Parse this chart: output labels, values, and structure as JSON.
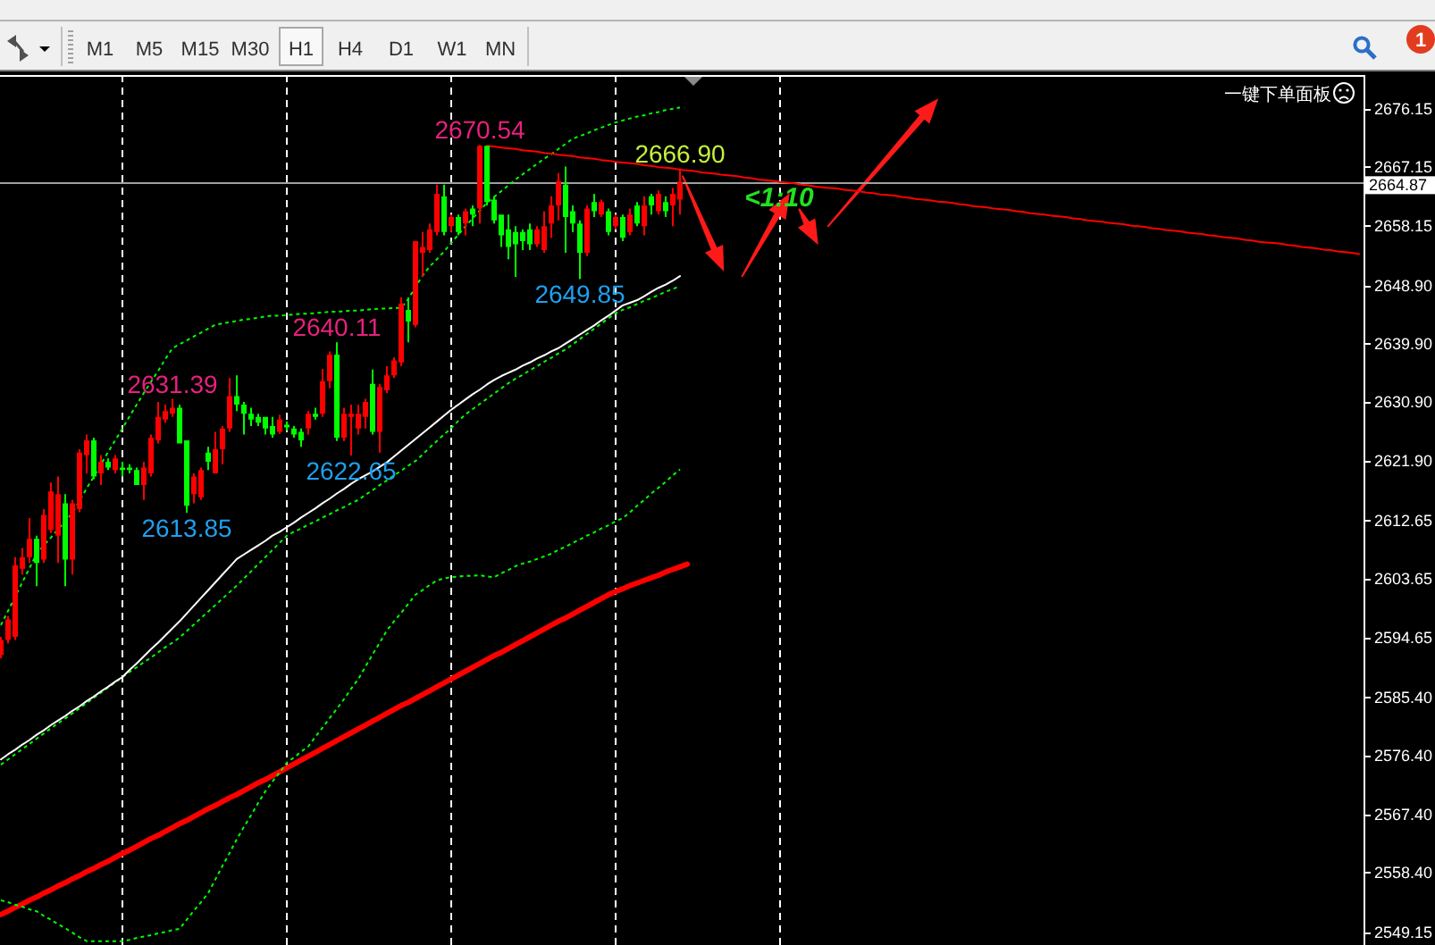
{
  "chart_data": {
    "type": "candlestick",
    "categories": [
      null,
      null,
      null,
      null,
      null,
      null,
      null,
      null,
      null,
      null,
      null,
      null,
      null,
      null,
      null,
      null,
      null,
      null,
      null,
      null,
      null,
      null,
      null,
      null,
      null,
      null,
      null,
      null,
      null,
      null,
      null,
      null,
      null,
      null,
      null,
      null,
      null,
      null,
      null,
      null,
      null,
      null,
      null,
      null,
      null,
      null,
      null,
      null,
      null,
      null,
      null,
      null,
      null,
      null,
      null,
      null,
      null,
      null,
      null,
      null,
      null,
      null,
      null,
      null,
      null,
      null,
      null,
      null,
      null,
      null,
      null,
      null,
      null,
      null,
      null,
      null,
      null,
      null,
      null,
      null,
      null,
      null,
      null,
      null,
      null,
      null,
      null,
      null,
      null,
      null,
      null,
      null,
      null,
      null,
      null,
      null,
      null,
      null,
      null,
      null,
      null,
      null,
      null,
      null,
      null,
      null,
      null,
      null,
      null,
      null,
      null,
      null,
      null,
      null,
      null,
      null,
      null,
      null,
      null,
      null,
      null,
      null,
      null,
      null,
      null,
      null,
      null,
      null,
      null,
      null,
      null,
      null,
      null,
      null,
      null,
      null,
      null,
      null,
      null,
      null,
      null,
      null,
      null,
      null,
      null,
      null,
      null,
      null,
      null,
      null,
      null,
      null,
      null,
      null,
      null,
      null,
      null,
      null,
      null,
      null,
      null,
      null,
      null,
      null,
      null,
      null,
      null,
      null,
      null,
      null,
      null,
      null,
      null,
      null,
      null,
      null,
      null,
      null,
      null,
      null,
      null,
      null,
      null,
      null,
      null,
      null,
      null,
      null,
      null,
      null,
      null
    ],
    "ohlc": [
      [
        2591.9,
        2594.7,
        2591.4,
        2594.2
      ],
      [
        2594.2,
        2597.9,
        2593.7,
        2597.4
      ],
      [
        2594.7,
        2607.0,
        2594.2,
        2605.7
      ],
      [
        2605.2,
        2608.4,
        2604.3,
        2607.0
      ],
      [
        2607.0,
        2613.0,
        2606.1,
        2609.8
      ],
      [
        2609.8,
        2610.3,
        2602.5,
        2606.1
      ],
      [
        2606.6,
        2614.4,
        2606.1,
        2613.5
      ],
      [
        2611.2,
        2618.5,
        2610.7,
        2617.1
      ],
      [
        2610.3,
        2619.4,
        2606.1,
        2616.7
      ],
      [
        2615.3,
        2616.7,
        2602.5,
        2606.6
      ],
      [
        2606.6,
        2615.8,
        2604.3,
        2615.3
      ],
      [
        2614.4,
        2623.6,
        2613.9,
        2623.1
      ],
      [
        2622.7,
        2625.9,
        2619.9,
        2625.0
      ],
      [
        2625.0,
        2625.4,
        2619.0,
        2619.4
      ],
      [
        2619.9,
        2622.7,
        2618.1,
        2621.7
      ],
      [
        2621.7,
        2622.2,
        2620.4,
        2620.8
      ],
      [
        2620.4,
        2622.7,
        2619.9,
        2622.2
      ],
      [
        2620.8,
        2621.7,
        2619.4,
        2620.4
      ],
      [
        2620.8,
        2621.3,
        2619.9,
        2620.4
      ],
      [
        2620.4,
        2620.8,
        2618.1,
        2618.1
      ],
      [
        2618.1,
        2621.7,
        2615.8,
        2620.8
      ],
      [
        2619.9,
        2625.9,
        2619.4,
        2625.4
      ],
      [
        2625.0,
        2630.9,
        2624.5,
        2628.6
      ],
      [
        2628.2,
        2630.5,
        2627.7,
        2629.5
      ],
      [
        2629.1,
        2631.39,
        2628.6,
        2630.0
      ],
      [
        2630.0,
        2630.5,
        2624.5,
        2624.5
      ],
      [
        2625.0,
        2625.0,
        2613.85,
        2614.9
      ],
      [
        2616.7,
        2619.9,
        2615.3,
        2619.4
      ],
      [
        2616.2,
        2620.8,
        2615.8,
        2620.4
      ],
      [
        2623.1,
        2624.0,
        2620.4,
        2621.7
      ],
      [
        2619.9,
        2626.3,
        2619.9,
        2623.6
      ],
      [
        2623.6,
        2627.2,
        2621.3,
        2626.8
      ],
      [
        2626.8,
        2634.6,
        2626.3,
        2631.8
      ],
      [
        2631.8,
        2635.0,
        2629.5,
        2630.5
      ],
      [
        2630.5,
        2630.9,
        2625.9,
        2629.1
      ],
      [
        2629.1,
        2630.0,
        2627.2,
        2628.2
      ],
      [
        2628.6,
        2629.1,
        2627.2,
        2627.7
      ],
      [
        2628.6,
        2628.6,
        2625.9,
        2626.8
      ],
      [
        2627.2,
        2628.6,
        2625.4,
        2625.9
      ],
      [
        2626.3,
        2628.9,
        2626.0,
        2628.2
      ],
      [
        2627.4,
        2627.9,
        2626.5,
        2627.0
      ],
      [
        2626.8,
        2627.2,
        2625.4,
        2625.9
      ],
      [
        2626.3,
        2626.8,
        2624.0,
        2625.0
      ],
      [
        2626.8,
        2629.5,
        2625.9,
        2629.1
      ],
      [
        2629.1,
        2630.0,
        2628.2,
        2628.6
      ],
      [
        2629.1,
        2636.0,
        2628.6,
        2634.1
      ],
      [
        2634.1,
        2638.7,
        2633.0,
        2638.2
      ],
      [
        2638.2,
        2640.11,
        2624.9,
        2625.4
      ],
      [
        2625.4,
        2630.0,
        2624.9,
        2629.1
      ],
      [
        2628.6,
        2630.5,
        2622.65,
        2629.1
      ],
      [
        2626.8,
        2630.5,
        2625.9,
        2629.1
      ],
      [
        2628.6,
        2631.4,
        2626.8,
        2630.9
      ],
      [
        2633.7,
        2635.9,
        2625.9,
        2626.3
      ],
      [
        2626.3,
        2633.7,
        2623.1,
        2633.2
      ],
      [
        2632.7,
        2636.4,
        2632.3,
        2635.0
      ],
      [
        2635.0,
        2637.8,
        2634.6,
        2637.3
      ],
      [
        2637.0,
        2647.0,
        2636.4,
        2646.1
      ],
      [
        2645.1,
        2647.0,
        2640.1,
        2643.3
      ],
      [
        2642.8,
        2655.7,
        2642.4,
        2655.7
      ],
      [
        2653.9,
        2657.1,
        2650.2,
        2654.8
      ],
      [
        2654.3,
        2658.4,
        2653.9,
        2657.5
      ],
      [
        2657.1,
        2664.4,
        2656.6,
        2663.0
      ],
      [
        2662.6,
        2664.4,
        2656.6,
        2657.1
      ],
      [
        2658.0,
        2659.8,
        2657.1,
        2659.4
      ],
      [
        2659.4,
        2659.8,
        2656.6,
        2657.1
      ],
      [
        2658.4,
        2660.7,
        2656.6,
        2660.3
      ],
      [
        2660.7,
        2661.2,
        2658.0,
        2659.8
      ],
      [
        2660.7,
        2670.54,
        2658.4,
        2670.4
      ],
      [
        2670.4,
        2670.4,
        2661.2,
        2661.7
      ],
      [
        2662.1,
        2662.6,
        2658.4,
        2658.9
      ],
      [
        2659.8,
        2659.8,
        2654.8,
        2656.6
      ],
      [
        2657.5,
        2659.8,
        2652.9,
        2654.8
      ],
      [
        2657.1,
        2658.0,
        2650.2,
        2655.2
      ],
      [
        2657.1,
        2657.5,
        2654.3,
        2655.7
      ],
      [
        2657.5,
        2658.4,
        2654.3,
        2655.2
      ],
      [
        2655.2,
        2658.0,
        2654.8,
        2657.5
      ],
      [
        2654.3,
        2660.3,
        2653.9,
        2658.0
      ],
      [
        2658.4,
        2662.6,
        2656.2,
        2661.2
      ],
      [
        2661.2,
        2666.2,
        2658.9,
        2664.9
      ],
      [
        2664.4,
        2667.2,
        2653.9,
        2659.4
      ],
      [
        2660.3,
        2661.2,
        2657.1,
        2658.4
      ],
      [
        2658.4,
        2658.9,
        2649.85,
        2653.9
      ],
      [
        2653.9,
        2661.2,
        2653.4,
        2660.7
      ],
      [
        2661.7,
        2663.0,
        2659.4,
        2660.3
      ],
      [
        2659.8,
        2662.1,
        2659.4,
        2661.7
      ],
      [
        2660.3,
        2660.7,
        2656.6,
        2657.1
      ],
      [
        2658.0,
        2659.8,
        2657.5,
        2659.4
      ],
      [
        2659.4,
        2659.8,
        2655.7,
        2656.2
      ],
      [
        2657.1,
        2660.7,
        2656.6,
        2659.8
      ],
      [
        2661.2,
        2661.7,
        2658.0,
        2658.4
      ],
      [
        2658.0,
        2662.6,
        2656.6,
        2661.2
      ],
      [
        2662.6,
        2663.0,
        2659.8,
        2661.2
      ],
      [
        2660.3,
        2663.5,
        2659.8,
        2663.0
      ],
      [
        2661.7,
        2662.6,
        2659.4,
        2660.3
      ],
      [
        2661.2,
        2663.9,
        2658.0,
        2663.0
      ],
      [
        2662.1,
        2666.9,
        2659.8,
        2664.87
      ],
      null,
      null,
      null,
      null,
      null,
      null,
      null,
      null,
      null,
      null,
      null,
      null,
      null,
      null,
      null,
      null,
      null,
      null,
      null,
      null,
      null,
      null,
      null,
      null,
      null,
      null,
      null,
      null,
      null,
      null,
      null,
      null,
      null,
      null,
      null,
      null,
      null,
      null,
      null,
      null,
      null,
      null,
      null,
      null,
      null,
      null,
      null,
      null,
      null,
      null,
      null,
      null,
      null,
      null,
      null,
      null,
      null,
      null,
      null,
      null,
      null,
      null,
      null,
      null,
      null,
      null,
      null,
      null,
      null,
      null,
      null,
      null,
      null,
      null,
      null,
      null,
      null,
      null,
      null,
      null,
      null,
      null,
      null,
      null,
      null,
      null,
      null,
      null,
      null,
      null,
      null,
      null,
      null,
      null,
      null
    ],
    "colors": [
      "#ff0000",
      "#ff0000",
      "#ff0000",
      "#ff0000",
      "#ff0000",
      "#00ff00",
      "#ff0000",
      "#ff0000",
      "#ff0000",
      "#00ff00",
      "#ff0000",
      "#ff0000",
      "#ff0000",
      "#00ff00",
      "#ff0000",
      "#00ff00",
      "#ff0000",
      "#00ff00",
      "#00ff00",
      "#00ff00",
      "#ff0000",
      "#ff0000",
      "#ff0000",
      "#ff0000",
      "#ff0000",
      "#00ff00",
      "#00ff00",
      "#ff0000",
      "#ff0000",
      "#00ff00",
      "#ff0000",
      "#ff0000",
      "#ff0000",
      "#00ff00",
      "#00ff00",
      "#00ff00",
      "#00ff00",
      "#00ff00",
      "#00ff00",
      "#ff0000",
      "#00ff00",
      "#00ff00",
      "#00ff00",
      "#ff0000",
      "#00ff00",
      "#ff0000",
      "#ff0000",
      "#00ff00",
      "#ff0000",
      "#ff0000",
      "#ff0000",
      "#ff0000",
      "#00ff00",
      "#ff0000",
      "#ff0000",
      "#ff0000",
      "#ff0000",
      "#00ff00",
      "#ff0000",
      "#ff0000",
      "#ff0000",
      "#ff0000",
      "#00ff00",
      "#ff0000",
      "#00ff00",
      "#ff0000",
      "#00ff00",
      "#ff0000",
      "#00ff00",
      "#00ff00",
      "#00ff00",
      "#00ff00",
      "#00ff00",
      "#00ff00",
      "#00ff00",
      "#ff0000",
      "#ff0000",
      "#ff0000",
      "#ff0000",
      "#00ff00",
      "#00ff00",
      "#00ff00",
      "#ff0000",
      "#00ff00",
      "#ff0000",
      "#00ff00",
      "#ff0000",
      "#00ff00",
      "#ff0000",
      "#00ff00",
      "#ff0000",
      "#00ff00",
      "#ff0000",
      "#00ff00",
      "#ff0000",
      "#ff0000",
      null,
      null,
      null,
      null,
      null,
      null,
      null,
      null,
      null,
      null,
      null,
      null,
      null,
      null,
      null,
      null,
      null,
      null,
      null,
      null,
      null,
      null,
      null,
      null,
      null,
      null,
      null,
      null,
      null,
      null,
      null,
      null,
      null,
      null,
      null,
      null,
      null,
      null,
      null,
      null,
      null,
      null,
      null,
      null,
      null,
      null,
      null,
      null,
      null,
      null,
      null,
      null,
      null,
      null,
      null,
      null,
      null,
      null,
      null,
      null,
      null,
      null,
      null,
      null,
      null,
      null,
      null,
      null,
      null,
      null,
      null,
      null,
      null,
      null,
      null,
      null,
      null,
      null,
      null,
      null,
      null,
      null,
      null,
      null,
      null,
      null,
      null,
      null,
      null,
      null,
      null,
      null,
      null,
      null,
      null
    ],
    "series": [
      {
        "type": "line",
        "color": "#ff0000",
        "line_style": "solid",
        "values": [
          2551.9,
          2552.4,
          2553.0,
          2553.5,
          2554.1,
          2554.6,
          2555.2,
          2555.7,
          2556.3,
          2556.8,
          2557.4,
          2557.9,
          2558.5,
          2559.0,
          2559.6,
          2560.1,
          2560.7,
          2561.3,
          2561.8,
          2562.4,
          2563.0,
          2563.6,
          2564.1,
          2564.7,
          2565.3,
          2565.9,
          2566.4,
          2567.0,
          2567.6,
          2568.2,
          2568.7,
          2569.3,
          2569.9,
          2570.4,
          2571.0,
          2571.6,
          2572.2,
          2572.7,
          2573.3,
          2573.9,
          2574.5,
          2575.1,
          2575.7,
          2576.3,
          2576.9,
          2577.5,
          2578.1,
          2578.7,
          2579.3,
          2579.9,
          2580.5,
          2581.1,
          2581.7,
          2582.3,
          2582.9,
          2583.5,
          2584.1,
          2584.6,
          2585.2,
          2585.8,
          2586.4,
          2587.0,
          2587.6,
          2588.2,
          2588.8,
          2589.4,
          2590.0,
          2590.6,
          2591.2,
          2591.8,
          2592.3,
          2592.9,
          2593.5,
          2594.1,
          2594.7,
          2595.3,
          2595.9,
          2596.5,
          2597.1,
          2597.6,
          2598.2,
          2598.8,
          2599.4,
          2600.0,
          2600.6,
          2601.2,
          2601.7,
          2602.1,
          2602.6,
          2603.0,
          2603.4,
          2603.8,
          2604.2,
          2604.7,
          2605.1,
          2605.5,
          2605.9,
          null,
          null,
          null,
          null,
          null,
          null,
          null,
          null,
          null,
          null,
          null,
          null,
          null,
          null,
          null,
          null,
          null,
          null,
          null,
          null,
          null,
          null,
          null,
          null,
          null,
          null,
          null,
          null,
          null,
          null,
          null,
          null,
          null,
          null,
          null,
          null,
          null,
          null,
          null,
          null,
          null,
          null,
          null,
          null,
          null,
          null,
          null,
          null,
          null,
          null,
          null,
          null,
          null,
          null,
          null,
          null,
          null,
          null,
          null,
          null,
          null,
          null,
          null,
          null,
          null,
          null,
          null,
          null,
          null,
          null,
          null,
          null,
          null,
          null,
          null,
          null,
          null,
          null,
          null,
          null,
          null,
          null,
          null,
          null,
          null,
          null,
          null,
          null,
          null,
          null,
          null,
          null,
          null,
          null
        ]
      },
      {
        "type": "line",
        "color": "#00ff00",
        "line_style": "dashed",
        "values": [
          2554.1,
          2553.8,
          2553.4,
          2553.1,
          2552.7,
          2552.4,
          2551.7,
          2551.1,
          2550.4,
          2549.8,
          2549.1,
          2548.4,
          2547.8,
          2547.8,
          2547.8,
          2547.8,
          2547.8,
          2547.8,
          2548.0,
          2548.3,
          2548.5,
          2548.7,
          2549.0,
          2549.2,
          2549.5,
          2549.7,
          2551.1,
          2552.5,
          2553.8,
          2555.2,
          2557.3,
          2559.4,
          2561.4,
          2563.5,
          2565.4,
          2567.2,
          2569.1,
          2570.9,
          2572.4,
          2573.8,
          2575.3,
          2576.1,
          2577.0,
          2577.8,
          2579.3,
          2580.7,
          2582.2,
          2583.6,
          2585.1,
          2586.7,
          2588.2,
          2590.1,
          2592.0,
          2593.8,
          2595.7,
          2597.1,
          2598.4,
          2599.8,
          2601.2,
          2601.9,
          2602.7,
          2603.4,
          2603.7,
          2603.9,
          2604.0,
          2604.1,
          2604.1,
          2604.2,
          2604.0,
          2603.9,
          2604.5,
          2605.0,
          2605.6,
          2606.0,
          2606.3,
          2606.7,
          2607.1,
          2607.5,
          2608.1,
          2608.6,
          2609.2,
          2609.7,
          2610.3,
          2610.8,
          2611.4,
          2611.9,
          2612.5,
          2613.0,
          2613.9,
          2614.9,
          2615.8,
          2616.8,
          2617.7,
          2618.6,
          2619.6,
          2620.5,
          null,
          null,
          null,
          null,
          null,
          null,
          null,
          null,
          null,
          null,
          null,
          null,
          null,
          null,
          null,
          null,
          null,
          null,
          null,
          null,
          null,
          null,
          null,
          null,
          null,
          null,
          null,
          null,
          null,
          null,
          null,
          null,
          null,
          null,
          null,
          null,
          null,
          null,
          null,
          null,
          null,
          null,
          null,
          null,
          null,
          null,
          null,
          null,
          null,
          null,
          null,
          null,
          null,
          null,
          null,
          null,
          null,
          null,
          null,
          null,
          null,
          null,
          null,
          null,
          null,
          null,
          null,
          null,
          null,
          null,
          null,
          null,
          null,
          null,
          null,
          null,
          null,
          null,
          null,
          null,
          null,
          null,
          null,
          null,
          null,
          null,
          null,
          null,
          null,
          null,
          null,
          null,
          null,
          null,
          null
        ]
      },
      {
        "type": "line",
        "color": "#00ff00",
        "line_style": "dashed",
        "values": [
          2596.5,
          2598.7,
          2600.9,
          2603.1,
          2605.3,
          2607.5,
          2608.8,
          2610.0,
          2611.3,
          2612.5,
          2613.8,
          2615.7,
          2617.6,
          2619.4,
          2621.3,
          2623.2,
          2625.0,
          2626.8,
          2628.7,
          2630.5,
          2632.3,
          2634.0,
          2635.7,
          2637.5,
          2639.2,
          2639.8,
          2640.4,
          2641.0,
          2641.6,
          2642.2,
          2642.8,
          2643.0,
          2643.2,
          2643.4,
          2643.6,
          2643.7,
          2643.9,
          2644.1,
          2644.2,
          2644.2,
          2644.3,
          2644.4,
          2644.5,
          2644.5,
          2644.6,
          2644.7,
          2644.8,
          2644.8,
          2644.9,
          2645.0,
          2645.0,
          2645.1,
          2645.2,
          2645.3,
          2645.3,
          2645.4,
          2645.4,
          2646.8,
          2648.6,
          2650.4,
          2651.8,
          2652.9,
          2654.1,
          2655.4,
          2656.7,
          2658.0,
          2659.2,
          2660.4,
          2661.6,
          2662.5,
          2663.4,
          2664.3,
          2665.2,
          2666.0,
          2666.8,
          2667.6,
          2668.4,
          2669.1,
          2669.9,
          2670.7,
          2671.5,
          2671.9,
          2672.3,
          2672.8,
          2673.2,
          2673.6,
          2674.0,
          2674.3,
          2674.6,
          2674.9,
          2675.1,
          2675.4,
          2675.6,
          2675.9,
          2676.1,
          2676.3,
          null,
          null,
          null,
          null,
          null,
          null,
          null,
          null,
          null,
          null,
          null,
          null,
          null,
          null,
          null,
          null,
          null,
          null,
          null,
          null,
          null,
          null,
          null,
          null,
          null,
          null,
          null,
          null,
          null,
          null,
          null,
          null,
          null,
          null,
          null,
          null,
          null,
          null,
          null,
          null,
          null,
          null,
          null,
          null,
          null,
          null,
          null,
          null,
          null,
          null,
          null,
          null,
          null,
          null,
          null,
          null,
          null,
          null,
          null,
          null,
          null,
          null,
          null,
          null,
          null,
          null,
          null,
          null,
          null,
          null,
          null,
          null,
          null,
          null,
          null,
          null,
          null,
          null,
          null,
          null,
          null,
          null,
          null,
          null,
          null,
          null,
          null,
          null,
          null,
          null,
          null,
          null,
          null,
          null,
          null
        ]
      },
      {
        "type": "line",
        "color": "#00ff00",
        "line_style": "dashed",
        "values": [
          2575.0,
          2575.8,
          2576.6,
          2577.4,
          2578.2,
          2579.0,
          2579.8,
          2580.6,
          2581.4,
          2582.1,
          2582.9,
          2583.7,
          2584.5,
          2585.3,
          2586.1,
          2586.9,
          2587.7,
          2588.5,
          2589.3,
          2590.0,
          2590.8,
          2591.5,
          2592.3,
          2593.1,
          2593.8,
          2594.6,
          2595.6,
          2596.6,
          2597.6,
          2598.6,
          2599.6,
          2600.6,
          2601.6,
          2602.6,
          2603.7,
          2604.8,
          2605.9,
          2607.0,
          2608.1,
          2609.2,
          2610.3,
          2610.9,
          2611.4,
          2612.0,
          2612.5,
          2613.1,
          2613.6,
          2614.2,
          2614.7,
          2615.3,
          2615.8,
          2616.6,
          2617.3,
          2618.1,
          2618.8,
          2619.6,
          2620.3,
          2621.1,
          2621.8,
          2622.8,
          2623.9,
          2624.9,
          2625.9,
          2626.9,
          2628.0,
          2629.0,
          2629.8,
          2630.6,
          2631.4,
          2632.2,
          2633.0,
          2633.8,
          2634.5,
          2635.1,
          2635.8,
          2636.4,
          2637.1,
          2637.7,
          2638.4,
          2639.0,
          2639.8,
          2640.6,
          2641.4,
          2642.2,
          2643.0,
          2643.8,
          2644.6,
          2645.1,
          2645.5,
          2646.0,
          2646.5,
          2646.9,
          2647.4,
          2647.9,
          2648.3,
          2648.8,
          null,
          null,
          null,
          null,
          null,
          null,
          null,
          null,
          null,
          null,
          null,
          null,
          null,
          null,
          null,
          null,
          null,
          null,
          null,
          null,
          null,
          null,
          null,
          null,
          null,
          null,
          null,
          null,
          null,
          null,
          null,
          null,
          null,
          null,
          null,
          null,
          null,
          null,
          null,
          null,
          null,
          null,
          null,
          null,
          null,
          null,
          null,
          null,
          null,
          null,
          null,
          null,
          null,
          null,
          null,
          null,
          null,
          null,
          null,
          null,
          null,
          null,
          null,
          null,
          null,
          null,
          null,
          null,
          null,
          null,
          null,
          null,
          null,
          null,
          null,
          null,
          null,
          null,
          null,
          null,
          null,
          null,
          null,
          null,
          null,
          null,
          null,
          null,
          null,
          null,
          null,
          null,
          null,
          null,
          null
        ]
      },
      {
        "type": "line",
        "color": "#ffffff",
        "line_style": "solid",
        "values": [
          2575.8,
          2576.6,
          2577.3,
          2578.1,
          2578.8,
          2579.6,
          2580.3,
          2581.1,
          2581.8,
          2582.5,
          2583.3,
          2584.0,
          2584.8,
          2585.5,
          2586.3,
          2587.0,
          2587.8,
          2588.5,
          2589.6,
          2590.6,
          2591.7,
          2592.8,
          2593.8,
          2594.9,
          2596.0,
          2597.1,
          2598.3,
          2599.5,
          2600.7,
          2601.9,
          2603.1,
          2604.3,
          2605.5,
          2606.7,
          2607.4,
          2608.1,
          2608.8,
          2609.5,
          2610.3,
          2610.9,
          2611.6,
          2612.3,
          2613.1,
          2613.8,
          2614.5,
          2615.3,
          2616.0,
          2616.8,
          2617.5,
          2618.3,
          2619.0,
          2619.6,
          2620.2,
          2620.9,
          2621.6,
          2622.5,
          2623.4,
          2624.3,
          2625.2,
          2626.1,
          2627.0,
          2627.9,
          2628.8,
          2629.7,
          2630.5,
          2631.3,
          2632.1,
          2632.8,
          2633.6,
          2634.3,
          2634.9,
          2635.4,
          2635.9,
          2636.5,
          2637.0,
          2637.6,
          2638.1,
          2638.7,
          2639.2,
          2639.9,
          2640.6,
          2641.3,
          2642.0,
          2642.7,
          2643.5,
          2644.2,
          2645.0,
          2645.8,
          2646.2,
          2646.6,
          2647.2,
          2647.9,
          2648.5,
          2649.0,
          2649.6,
          2650.3,
          null,
          null,
          null,
          null,
          null,
          null,
          null,
          null,
          null,
          null,
          null,
          null,
          null,
          null,
          null,
          null,
          null,
          null,
          null,
          null,
          null,
          null,
          null,
          null,
          null,
          null,
          null,
          null,
          null,
          null,
          null,
          null,
          null,
          null,
          null,
          null,
          null,
          null,
          null,
          null,
          null,
          null,
          null,
          null,
          null,
          null,
          null,
          null,
          null,
          null,
          null,
          null,
          null,
          null,
          null,
          null,
          null,
          null,
          null,
          null,
          null,
          null,
          null,
          null,
          null,
          null,
          null,
          null,
          null,
          null,
          null,
          null,
          null,
          null,
          null,
          null,
          null,
          null,
          null,
          null,
          null,
          null,
          null,
          null,
          null,
          null,
          null,
          null,
          null,
          null,
          null,
          null,
          null,
          null,
          null
        ]
      },
      {
        "type": "line",
        "color": "#ff0000",
        "line_style": "solid",
        "values": [
          null,
          null,
          null,
          null,
          null,
          null,
          null,
          null,
          null,
          null,
          null,
          null,
          null,
          null,
          null,
          null,
          null,
          null,
          null,
          null,
          null,
          null,
          null,
          null,
          null,
          null,
          null,
          null,
          null,
          null,
          null,
          null,
          null,
          null,
          null,
          null,
          null,
          null,
          null,
          null,
          null,
          null,
          null,
          null,
          null,
          null,
          null,
          null,
          null,
          null,
          null,
          null,
          null,
          null,
          null,
          null,
          null,
          null,
          null,
          null,
          null,
          null,
          null,
          null,
          null,
          null,
          null,
          null,
          2670.4,
          2670.3,
          2670.1,
          2670.0,
          2669.9,
          2669.7,
          2669.6,
          2669.5,
          2669.3,
          2669.2,
          2669.0,
          2668.9,
          2668.8,
          2668.6,
          2668.5,
          2668.4,
          2668.2,
          2668.1,
          2667.9,
          2667.8,
          2667.7,
          2667.6,
          2667.4,
          2667.3,
          2667.1,
          2667.0,
          2666.9,
          2666.7,
          2666.6,
          2666.5,
          2666.3,
          2666.2,
          2666.1,
          2665.9,
          2665.8,
          2665.7,
          2665.5,
          2665.4,
          2665.2,
          2665.1,
          2665.0,
          2664.8,
          2664.7,
          2664.6,
          2664.4,
          2664.3,
          2664.1,
          2664.0,
          2663.9,
          2663.8,
          2663.6,
          2663.5,
          2663.4,
          2663.2,
          2663.1,
          2662.9,
          2662.8,
          2662.7,
          2662.5,
          2662.4,
          2662.2,
          2662.1,
          2662.0,
          2661.8,
          2661.7,
          2661.6,
          2661.4,
          2661.3,
          2661.1,
          2661.0,
          2660.9,
          2660.7,
          2660.6,
          2660.5,
          2660.3,
          2660.2,
          2660.0,
          2659.9,
          2659.8,
          2659.6,
          2659.5,
          2659.4,
          2659.2,
          2659.1,
          2658.9,
          2658.8,
          2658.7,
          2658.5,
          2658.4,
          2658.3,
          2658.1,
          2658.0,
          2657.9,
          2657.7,
          2657.6,
          2657.4,
          2657.3,
          2657.2,
          2657.0,
          2656.9,
          2656.8,
          2656.6,
          2656.5,
          2656.3,
          2656.2,
          2656.1,
          2655.9,
          2655.8,
          2655.6,
          2655.5,
          2655.4,
          2655.3,
          2655.1,
          2655.0,
          2654.8,
          2654.7,
          2654.6,
          2654.4,
          2654.3,
          2654.1,
          2654.0,
          2653.9,
          2653.7
        ]
      }
    ],
    "ylim": [
      2547.2,
      2681.3
    ],
    "yticks": [
      2676.15,
      2667.15,
      2658.15,
      {
        "value": 2648.9,
        "label": "2648.90"
      },
      {
        "value": 2639.9,
        "label": "2639.90"
      },
      {
        "value": 2630.9,
        "label": "2630.90"
      },
      {
        "value": 2621.9,
        "label": "2621.90"
      },
      2612.65,
      2603.65,
      2594.65,
      {
        "value": 2585.4,
        "label": "2585.40"
      },
      {
        "value": 2576.4,
        "label": "2576.40"
      },
      {
        "value": 2567.4,
        "label": "2567.40"
      },
      {
        "value": 2558.4,
        "label": "2558.40"
      },
      2549.15
    ],
    "tick_labels": "y",
    "ref_lines": [
      {
        "axis": "y",
        "value": 2664.87,
        "label": "2664.87",
        "color": "#a0a0a0"
      }
    ],
    "annotations": [
      {
        "text": "2670.54",
        "y": 2670.54
      },
      {
        "text": "2666.90",
        "y": 2666.9
      },
      {
        "text": "2640.11",
        "y": 2640.11
      },
      {
        "text": "2631.39",
        "y": 2631.39
      },
      {
        "text": "2649.85",
        "y": 2649.85
      },
      {
        "text": "2622.65",
        "y": 2622.65
      },
      {
        "text": "2613.85",
        "y": 2613.85
      },
      "<1:10",
      "一键下单面板",
      "M1",
      "M5",
      "M15",
      "M30",
      "H1",
      "H4",
      "D1",
      "W1",
      "MN",
      "1"
    ]
  }
}
